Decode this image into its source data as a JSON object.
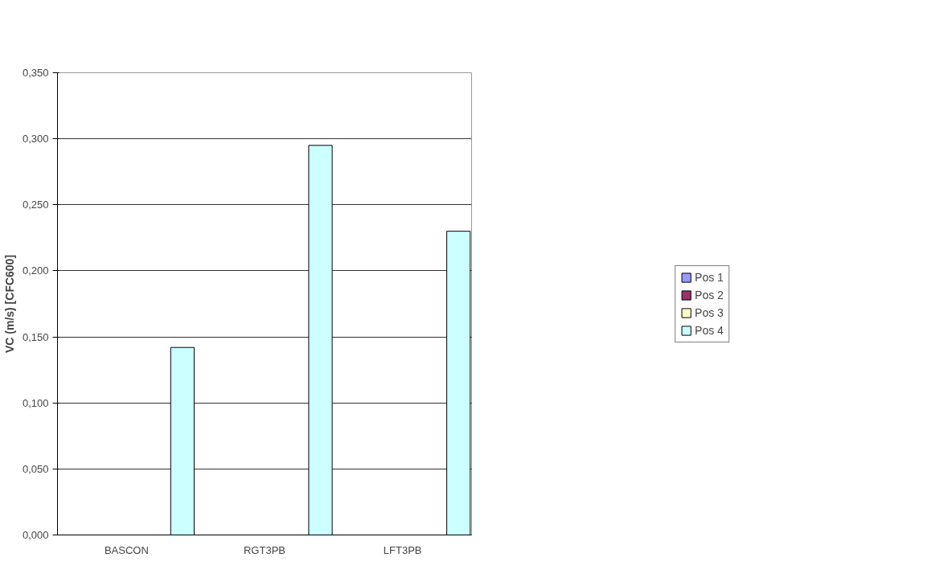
{
  "chart_data": {
    "type": "bar",
    "ylabel": "VC (m/s) [CFC600]",
    "categories": [
      "BASCON",
      "RGT3PB",
      "LFT3PB"
    ],
    "series": [
      {
        "name": "Pos 1",
        "color": "#9999ff",
        "values": [
          null,
          null,
          null
        ]
      },
      {
        "name": "Pos 2",
        "color": "#993366",
        "values": [
          null,
          null,
          null
        ]
      },
      {
        "name": "Pos 3",
        "color": "#ffffcc",
        "values": [
          null,
          null,
          null
        ]
      },
      {
        "name": "Pos 4",
        "color": "#ccffff",
        "values": [
          0.142,
          0.295,
          0.23
        ]
      }
    ],
    "ylim": [
      0,
      0.35
    ],
    "yticks": [
      {
        "value": 0,
        "label": "0,000"
      },
      {
        "value": 0.05,
        "label": "0,050"
      },
      {
        "value": 0.1,
        "label": "0,100"
      },
      {
        "value": 0.15,
        "label": "0,150"
      },
      {
        "value": 0.2,
        "label": "0,200"
      },
      {
        "value": 0.25,
        "label": "0,250"
      },
      {
        "value": 0.3,
        "label": "0,300"
      },
      {
        "value": 0.35,
        "label": "0,350"
      }
    ],
    "grid": "y",
    "legend": "right"
  }
}
